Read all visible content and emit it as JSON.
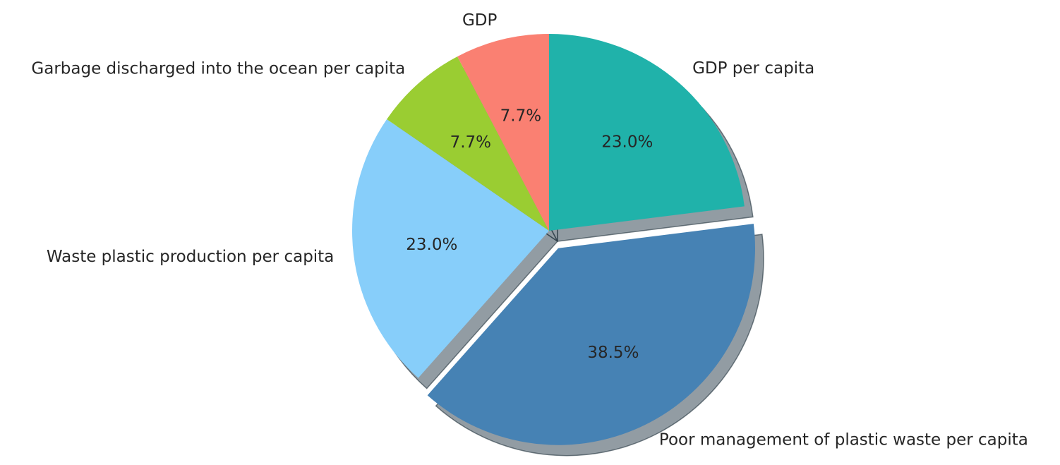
{
  "chart_data": {
    "type": "pie",
    "slices": [
      {
        "label": "GDP per capita",
        "value": 23.0,
        "pct_label": "23.0%",
        "color": "#20b2aa",
        "explode": 0
      },
      {
        "label": "Poor management of plastic waste per capita",
        "value": 38.5,
        "pct_label": "38.5%",
        "color": "#4682b4",
        "explode": 0.1
      },
      {
        "label": "Waste plastic production per capita",
        "value": 23.0,
        "pct_label": "23.0%",
        "color": "#87cefa",
        "explode": 0
      },
      {
        "label": "Garbage discharged into the ocean per capita",
        "value": 7.7,
        "pct_label": "7.7%",
        "color": "#9acd32",
        "explode": 0
      },
      {
        "label": "GDP",
        "value": 7.7,
        "pct_label": "7.7%",
        "color": "#fa8072",
        "explode": 0
      }
    ],
    "start_angle_deg": 90,
    "direction": "clockwise",
    "shadow": true,
    "legend": false
  }
}
